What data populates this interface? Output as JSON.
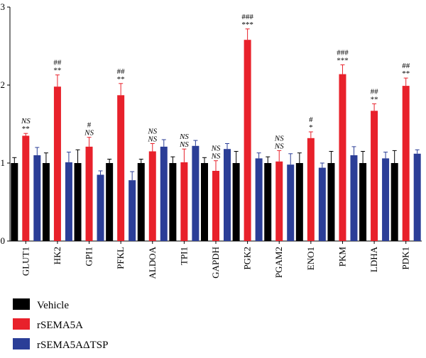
{
  "chart_data": {
    "type": "bar",
    "title": "",
    "xlabel": "",
    "ylabel": "",
    "ylim": [
      0,
      3
    ],
    "yticks": [
      "0",
      "1",
      "2",
      "3"
    ],
    "grid": false,
    "legend_placement": "bottom-left",
    "categories": [
      "GLUT1",
      "HK2",
      "GPI1",
      "PFKL",
      "ALDOA",
      "TPI1",
      "GAPDH",
      "PGK2",
      "PGAM2",
      "ENO1",
      "PKM",
      "LDHA",
      "PDK1"
    ],
    "series": [
      {
        "name": "Vehicle",
        "color": "#000000",
        "values": [
          1.0,
          1.0,
          1.0,
          1.0,
          1.0,
          1.0,
          1.0,
          1.0,
          1.0,
          1.0,
          1.0,
          1.0,
          1.0
        ],
        "errors": [
          0.07,
          0.13,
          0.17,
          0.05,
          0.05,
          0.08,
          0.07,
          0.15,
          0.08,
          0.13,
          0.15,
          0.15,
          0.16
        ],
        "annotations": [
          "",
          "",
          "",
          "",
          "",
          "",
          "",
          "",
          "",
          "",
          "",
          "",
          ""
        ]
      },
      {
        "name": "rSEMA5A",
        "color": "#e8212b",
        "values": [
          1.35,
          1.98,
          1.21,
          1.87,
          1.15,
          1.01,
          0.9,
          2.58,
          1.02,
          1.32,
          2.14,
          1.67,
          1.99
        ],
        "errors": [
          0.03,
          0.15,
          0.12,
          0.15,
          0.1,
          0.17,
          0.13,
          0.14,
          0.14,
          0.08,
          0.12,
          0.09,
          0.1
        ],
        "annotations": [
          "NS|**",
          "##|**",
          "#|NS",
          "##|**",
          "NS|NS",
          "NS|NS",
          "NS|NS",
          "###|***",
          "NS|NS",
          "#|*",
          "###|***",
          "##|**",
          "##|**"
        ]
      },
      {
        "name": "rSEMA5AΔTSP",
        "color": "#2b3e97",
        "values": [
          1.1,
          1.01,
          0.85,
          0.78,
          1.21,
          1.22,
          1.18,
          1.06,
          0.98,
          0.94,
          1.1,
          1.06,
          1.12
        ],
        "errors": [
          0.1,
          0.13,
          0.05,
          0.11,
          0.09,
          0.07,
          0.07,
          0.07,
          0.14,
          0.06,
          0.11,
          0.08,
          0.05
        ],
        "annotations": [
          "",
          "",
          "",
          "",
          "",
          "",
          "",
          "",
          "",
          "",
          "",
          "",
          ""
        ]
      }
    ]
  }
}
